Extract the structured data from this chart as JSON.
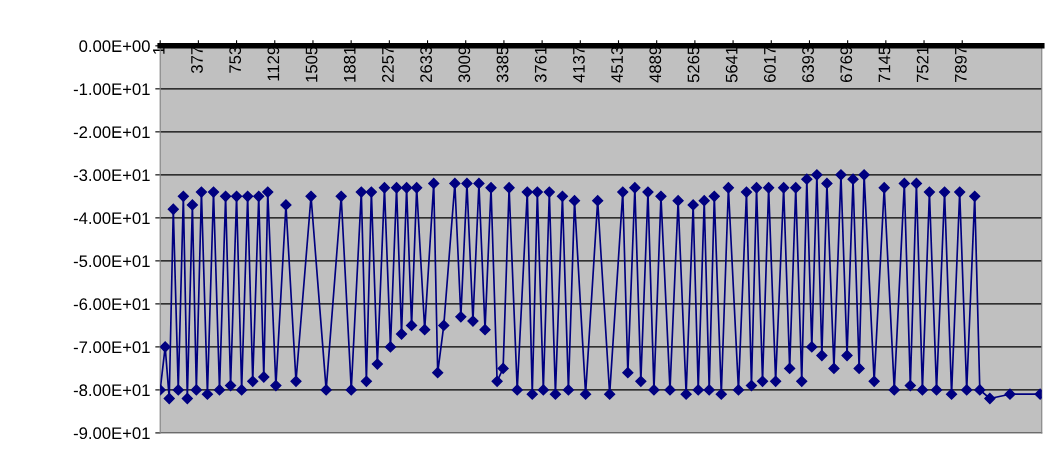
{
  "chart_data": {
    "type": "line",
    "marker": "diamond",
    "line_style": "solid",
    "grid": "y",
    "legend": false,
    "xlim": [
      1,
      8680
    ],
    "ylim": [
      -90,
      0
    ],
    "xticks": [
      1,
      377,
      753,
      1129,
      1505,
      1881,
      2257,
      2633,
      3009,
      3385,
      3761,
      4137,
      4513,
      4889,
      5265,
      5641,
      6017,
      6393,
      6769,
      7145,
      7521,
      7897
    ],
    "yticks": [
      {
        "value": 0,
        "label": "0.00E+00"
      },
      {
        "value": -10,
        "label": "-1.00E+01"
      },
      {
        "value": -20,
        "label": "-2.00E+01"
      },
      {
        "value": -30,
        "label": "-3.00E+01"
      },
      {
        "value": -40,
        "label": "-4.00E+01"
      },
      {
        "value": -50,
        "label": "-5.00E+01"
      },
      {
        "value": -60,
        "label": "-6.00E+01"
      },
      {
        "value": -70,
        "label": "-7.00E+01"
      },
      {
        "value": -80,
        "label": "-8.00E+01"
      },
      {
        "value": -90,
        "label": "-9.00E+01"
      }
    ],
    "series": [
      {
        "color": "#000080",
        "x": [
          1,
          50,
          90,
          130,
          179,
          229,
          268,
          318,
          357,
          407,
          466,
          526,
          585,
          645,
          694,
          753,
          803,
          862,
          912,
          971,
          1021,
          1060,
          1140,
          1239,
          1338,
          1486,
          1635,
          1783,
          1882,
          1981,
          2031,
          2080,
          2139,
          2209,
          2268,
          2328,
          2377,
          2427,
          2476,
          2526,
          2605,
          2694,
          2733,
          2793,
          2902,
          2961,
          3021,
          3080,
          3139,
          3199,
          3258,
          3318,
          3377,
          3436,
          3516,
          3615,
          3664,
          3714,
          3773,
          3832,
          3892,
          3961,
          4020,
          4080,
          4189,
          4308,
          4426,
          4555,
          4605,
          4674,
          4733,
          4803,
          4862,
          4931,
          5020,
          5100,
          5179,
          5248,
          5298,
          5357,
          5406,
          5456,
          5525,
          5595,
          5694,
          5773,
          5822,
          5872,
          5931,
          5991,
          6060,
          6139,
          6198,
          6258,
          6317,
          6367,
          6416,
          6466,
          6515,
          6565,
          6634,
          6703,
          6763,
          6822,
          6882,
          6931,
          7030,
          7129,
          7228,
          7327,
          7386,
          7446,
          7505,
          7574,
          7644,
          7723,
          7792,
          7872,
          7941,
          8020,
          8070,
          8169,
          8367,
          8664
        ],
        "values": [
          -80,
          -70,
          -82,
          -38,
          -80,
          -35,
          -82,
          -37,
          -80,
          -34,
          -81,
          -34,
          -80,
          -35,
          -79,
          -35,
          -80,
          -35,
          -78,
          -35,
          -77,
          -34,
          -79,
          -37,
          -78,
          -35,
          -80,
          -35,
          -80,
          -34,
          -78,
          -34,
          -74,
          -33,
          -70,
          -33,
          -67,
          -33,
          -65,
          -33,
          -66,
          -32,
          -76,
          -65,
          -32,
          -63,
          -32,
          -64,
          -32,
          -66,
          -33,
          -78,
          -75,
          -33,
          -80,
          -34,
          -81,
          -34,
          -80,
          -34,
          -81,
          -35,
          -80,
          -36,
          -81,
          -36,
          -81,
          -34,
          -76,
          -33,
          -78,
          -34,
          -80,
          -35,
          -80,
          -36,
          -81,
          -37,
          -80,
          -36,
          -80,
          -35,
          -81,
          -33,
          -80,
          -34,
          -79,
          -33,
          -78,
          -33,
          -78,
          -33,
          -75,
          -33,
          -78,
          -31,
          -70,
          -30,
          -72,
          -32,
          -75,
          -30,
          -72,
          -31,
          -75,
          -30,
          -78,
          -33,
          -80,
          -32,
          -79,
          -32,
          -80,
          -34,
          -80,
          -34,
          -81,
          -34,
          -80,
          -35,
          -80,
          -82,
          -81,
          -81
        ]
      }
    ]
  }
}
